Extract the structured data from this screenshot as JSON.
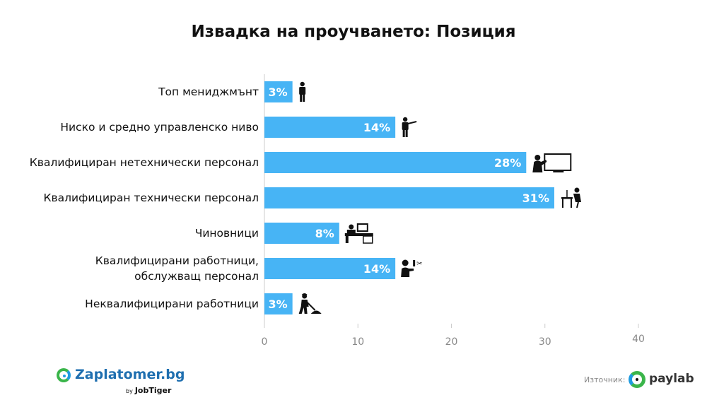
{
  "chart_data": {
    "type": "bar",
    "orientation": "horizontal",
    "title": "Извадка на проучването: Позиция",
    "categories": [
      [
        "Топ мениджмънт"
      ],
      [
        "Ниско и средно управленско ниво"
      ],
      [
        "Квалифициран нетехнически персонал"
      ],
      [
        "Квалифициран технически персонал"
      ],
      [
        "Чиновници"
      ],
      [
        "Квалифицирани работници,",
        "обслужващ персонал"
      ],
      [
        "Неквалифицирани работници"
      ]
    ],
    "values": [
      3,
      14,
      28,
      31,
      8,
      14,
      3
    ],
    "value_labels": [
      "3%",
      "14%",
      "28%",
      "31%",
      "8%",
      "14%",
      "3%"
    ],
    "icons": [
      "businessman-icon",
      "presenter-icon",
      "teacher-board-icon",
      "engineer-desk-icon",
      "clerk-office-icon",
      "hairdresser-icon",
      "laborer-shovel-icon"
    ],
    "xlim": [
      0,
      40
    ],
    "xticks": [
      0,
      10,
      20,
      30,
      40
    ],
    "grid": false,
    "bar_color": "#47b4f5"
  },
  "footer": {
    "logo_name": "Zaplatomer.bg",
    "logo_by_prefix": "by",
    "logo_by_brand": "JobTiger",
    "source_label": "Източник:",
    "source_brand": "paylab"
  }
}
